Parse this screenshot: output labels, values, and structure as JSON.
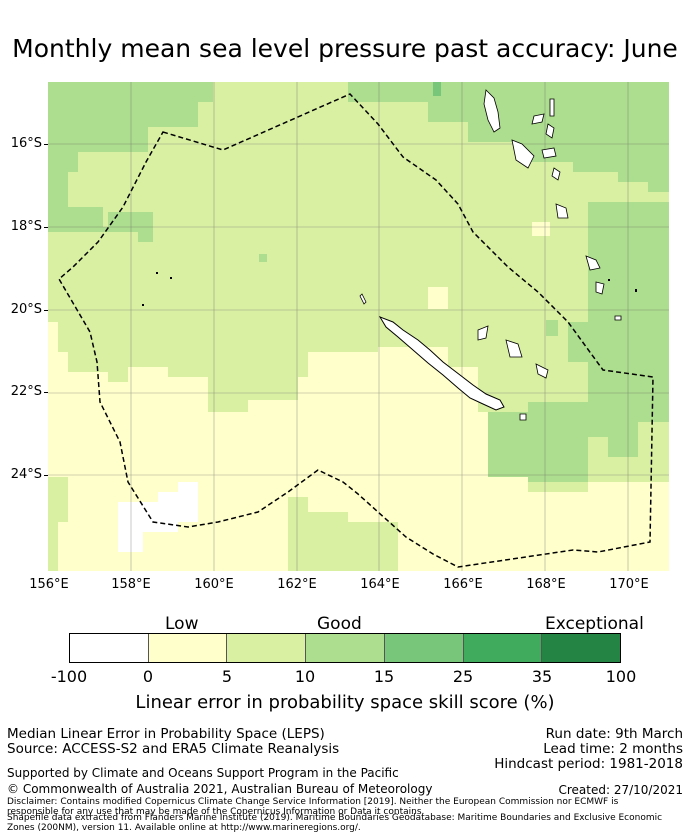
{
  "title": "Monthly mean sea level pressure past accuracy: June",
  "map": {
    "lat_labels": [
      "16°S",
      "18°S",
      "20°S",
      "22°S",
      "24°S"
    ],
    "lon_labels": [
      "156°E",
      "158°E",
      "160°E",
      "162°E",
      "164°E",
      "166°E",
      "168°E",
      "170°E"
    ],
    "boundary_line": "dashed",
    "colors": {
      "band_neg100_0": "#ffffff",
      "band_0_5": "#ffffcc",
      "band_5_10": "#d9f0a3",
      "band_10_15": "#addd8e",
      "band_15_25": "#78c679",
      "band_25_35": "#41ab5d",
      "band_35_100": "#238443",
      "land": "#ffffff",
      "coast": "#000000",
      "grid": "#666666"
    }
  },
  "legend": {
    "categories": [
      "Low",
      "Good",
      "Exceptional"
    ],
    "ticks": [
      "-100",
      "0",
      "5",
      "10",
      "15",
      "25",
      "35",
      "100"
    ],
    "colors": [
      "#ffffff",
      "#ffffcc",
      "#d9f0a3",
      "#addd8e",
      "#78c679",
      "#41ab5d",
      "#238443"
    ],
    "axis_label": "Linear error in probability space skill score (%)"
  },
  "footer": {
    "method": "Median Linear Error in Probability Space (LEPS)",
    "source": "Source: ACCESS-S2 and ERA5 Climate Reanalysis",
    "run_date": "Run date: 9th March",
    "lead_time": "Lead time: 2 months",
    "hindcast": "Hindcast period: 1981-2018",
    "supported": "Supported by Climate and Oceans Support Program in the Pacific",
    "copyright": "© Commonwealth of Australia 2021, Australian Bureau of Meteorology",
    "created": "Created: 27/10/2021",
    "disclaimer1": "Disclaimer: Contains modified Copernicus Climate Change Service Information [2019]. Neither the European Commission nor ECMWF is",
    "disclaimer2": "responsible for any use that may be made of the Copernicus Information or Data it contains.",
    "shapefile1": "Shapefile data extracted from Flanders Marine Institute (2019). Maritime Boundaries Geodatabase: Maritime Boundaries and Exclusive Economic",
    "shapefile2": "Zones (200NM), version 11. Available online at http://www.marineregions.org/."
  }
}
